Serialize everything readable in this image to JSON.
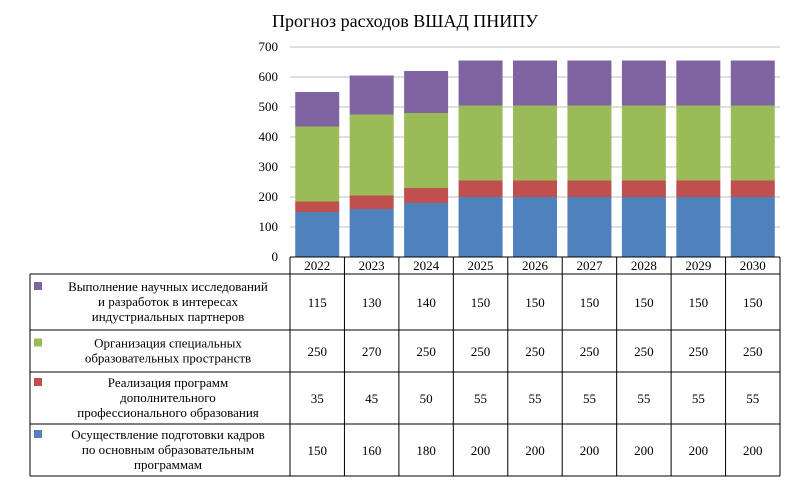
{
  "chart_data": {
    "type": "bar",
    "stacked": true,
    "title": "Прогноз расходов ВШАД ПНИПУ",
    "categories": [
      "2022",
      "2023",
      "2024",
      "2025",
      "2026",
      "2027",
      "2028",
      "2029",
      "2030"
    ],
    "ylim": [
      0,
      700
    ],
    "yticks": [
      0,
      100,
      200,
      300,
      400,
      500,
      600,
      700
    ],
    "grid": true,
    "legend_placement": "data-table-left",
    "series": [
      {
        "name": "Осуществление подготовки кадров по основным образовательным программам",
        "name_lines": [
          "Осуществление подготовки кадров",
          "по основным образовательным",
          "программам"
        ],
        "color": "#4f81bd",
        "values": [
          150,
          160,
          180,
          200,
          200,
          200,
          200,
          200,
          200
        ]
      },
      {
        "name": "Реализация программ дополнительного профессионального образования",
        "name_lines": [
          "Реализация программ",
          "дополнительного",
          "профессионального образования"
        ],
        "color": "#c0504d",
        "values": [
          35,
          45,
          50,
          55,
          55,
          55,
          55,
          55,
          55
        ]
      },
      {
        "name": "Организация специальных образовательных пространств",
        "name_lines": [
          "Организация специальных",
          "образовательных пространств"
        ],
        "color": "#9bbb59",
        "values": [
          250,
          270,
          250,
          250,
          250,
          250,
          250,
          250,
          250
        ]
      },
      {
        "name": "Выполнение научных исследований и разработок в интересах индустриальных партнеров",
        "name_lines": [
          "Выполнение научных исследований",
          "и разработок в интересах",
          "индустриальных партнеров"
        ],
        "color": "#8064a2",
        "values": [
          115,
          130,
          140,
          150,
          150,
          150,
          150,
          150,
          150
        ]
      }
    ]
  }
}
